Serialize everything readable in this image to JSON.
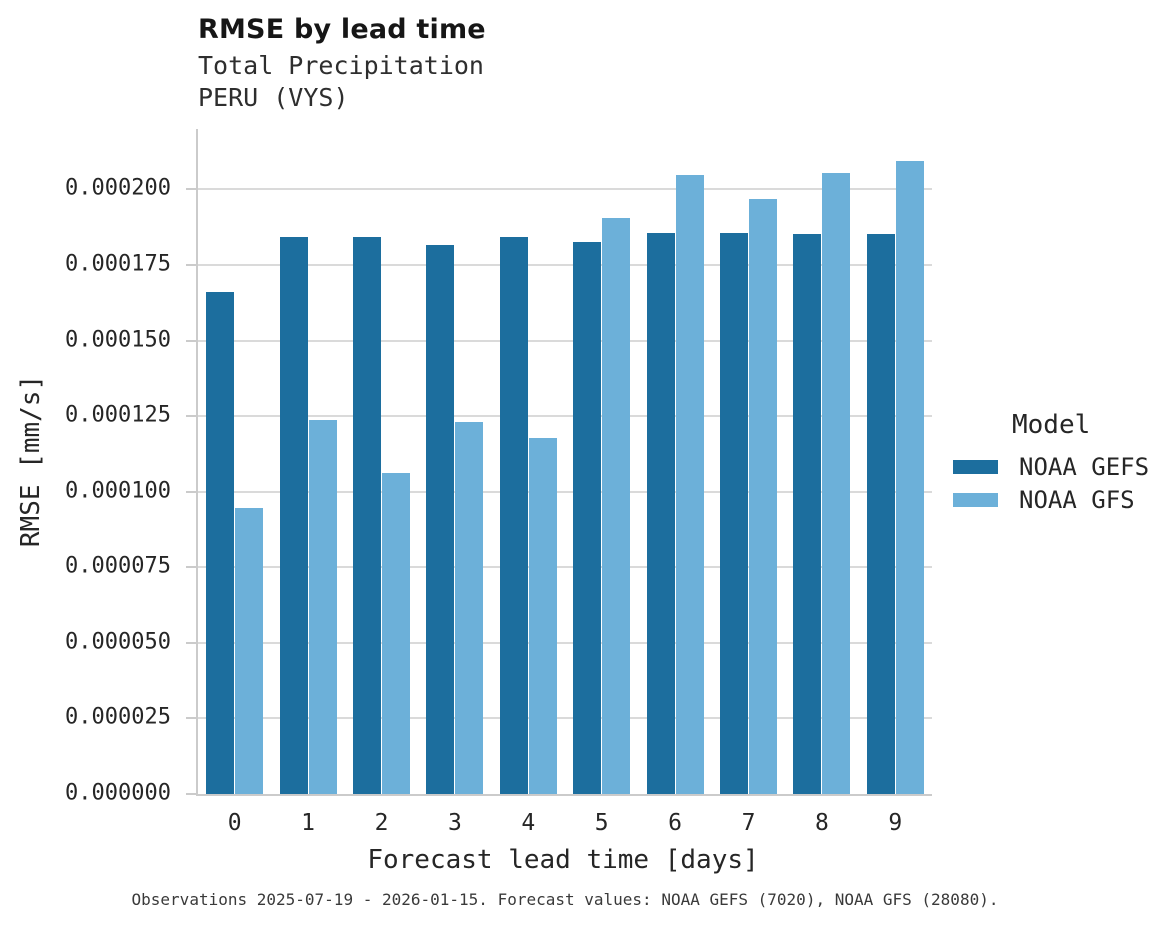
{
  "header": {
    "title": "RMSE by lead time",
    "subtitle": "Total Precipitation\nPERU (VYS)"
  },
  "caption": "Observations 2025-07-19 - 2026-01-15. Forecast values: NOAA GEFS (7020), NOAA GFS (28080).",
  "colors": {
    "gefs_dark_blue": "#1c6e9e",
    "gfs_light_blue": "#6cb0d9",
    "gridline_gray": "#dadada",
    "spine_gray": "#cbcbcb",
    "text_dark": "#262626"
  },
  "chart_data": {
    "type": "bar",
    "title": "RMSE by lead time",
    "subtitle_lines": [
      "Total Precipitation",
      "PERU (VYS)"
    ],
    "xlabel": "Forecast lead time [days]",
    "ylabel": "RMSE [mm/s]",
    "legend_title": "Model",
    "legend_position": "right",
    "grid": true,
    "categories": [
      "0",
      "1",
      "2",
      "3",
      "4",
      "5",
      "6",
      "7",
      "8",
      "9"
    ],
    "ylim": [
      0,
      0.00022
    ],
    "yticks": [
      {
        "v": 0.0,
        "label": "0.000000"
      },
      {
        "v": 2.5e-05,
        "label": "0.000025"
      },
      {
        "v": 5e-05,
        "label": "0.000050"
      },
      {
        "v": 7.5e-05,
        "label": "0.000075"
      },
      {
        "v": 0.0001,
        "label": "0.000100"
      },
      {
        "v": 0.000125,
        "label": "0.000125"
      },
      {
        "v": 0.00015,
        "label": "0.000150"
      },
      {
        "v": 0.000175,
        "label": "0.000175"
      },
      {
        "v": 0.0002,
        "label": "0.000200"
      }
    ],
    "series": [
      {
        "name": "NOAA GEFS",
        "color": "#1c6e9e",
        "values": [
          0.000166,
          0.0001843,
          0.0001842,
          0.0001816,
          0.0001843,
          0.0001826,
          0.0001857,
          0.0001855,
          0.0001852,
          0.0001852
        ]
      },
      {
        "name": "NOAA GFS",
        "color": "#6cb0d9",
        "values": [
          9.46e-05,
          0.0001238,
          0.0001063,
          0.0001231,
          0.0001179,
          0.0001906,
          0.0002049,
          0.000197,
          0.0002055,
          0.0002093
        ]
      }
    ]
  }
}
